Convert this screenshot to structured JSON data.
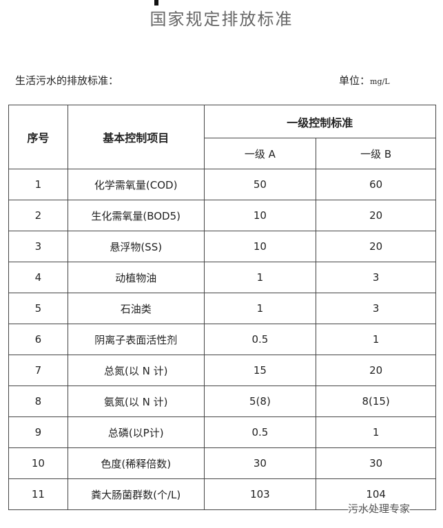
{
  "title": "国家规定排放标准",
  "subtitle": "生活污水的排放标准：",
  "unit_label": "单位：",
  "unit_value": "mg/L",
  "table": {
    "headers": {
      "no": "序号",
      "item": "基本控制项目",
      "group": "一级控制标准",
      "a": "一级 A",
      "b": "一级 B"
    },
    "rows": [
      {
        "no": "1",
        "item": "化学需氧量(COD)",
        "a": "50",
        "b": "60"
      },
      {
        "no": "2",
        "item": "生化需氧量(BOD5)",
        "a": "10",
        "b": "20"
      },
      {
        "no": "3",
        "item": "悬浮物(SS)",
        "a": "10",
        "b": "20"
      },
      {
        "no": "4",
        "item": "动植物油",
        "a": "1",
        "b": "3"
      },
      {
        "no": "5",
        "item": "石油类",
        "a": "1",
        "b": "3"
      },
      {
        "no": "6",
        "item": "阴离子表面活性剂",
        "a": "0.5",
        "b": "1"
      },
      {
        "no": "7",
        "item": "总氮(以 N 计)",
        "a": "15",
        "b": "20"
      },
      {
        "no": "8",
        "item": "氨氮(以 N 计)",
        "a": "5(8)",
        "b": "8(15)"
      },
      {
        "no": "9",
        "item": "总磷(以P计)",
        "a": "0.5",
        "b": "1"
      },
      {
        "no": "10",
        "item": "色度(稀释倍数)",
        "a": "30",
        "b": "30"
      },
      {
        "no": "11",
        "item": "粪大肠菌群数(个/L)",
        "a": "103",
        "b": "104"
      }
    ]
  },
  "watermark": "污水处理专家"
}
